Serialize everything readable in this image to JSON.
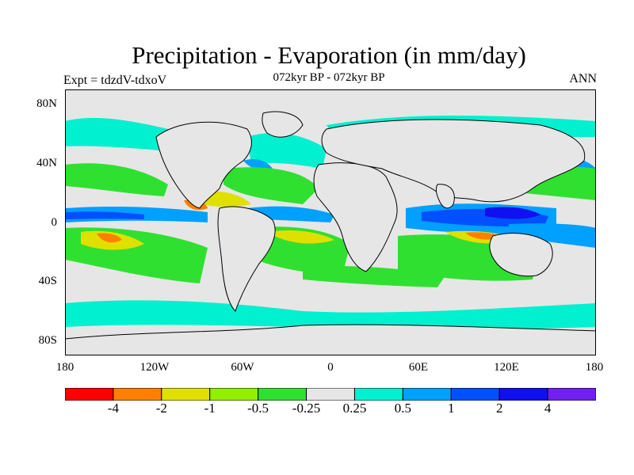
{
  "title": "Precipitation - Evaporation (in mm/day)",
  "subtitle": "072kyr BP - 072kyr BP",
  "left_label": "Expt = tdzdV-tdxoV",
  "right_label": "ANN",
  "lat_labels": [
    "80N",
    "40N",
    "0",
    "40S",
    "80S"
  ],
  "lon_labels": [
    "180",
    "120W",
    "60W",
    "0",
    "60E",
    "120E",
    "180"
  ],
  "colorbar": {
    "labels": [
      "-4",
      "-2",
      "-1",
      "-0.5",
      "-0.25",
      "0.25",
      "0.5",
      "1",
      "2",
      "4"
    ],
    "colors": [
      "#ff0000",
      "#ff8000",
      "#e0e000",
      "#90f000",
      "#30e030",
      "#e6e6e6",
      "#00f0d0",
      "#00a0ff",
      "#0050ff",
      "#1010f0",
      "#7020f0"
    ]
  },
  "colors": {
    "background": "#e6e6e6",
    "dry_strong": "#ff8000",
    "dry_yellow": "#e0e000",
    "dry_lightgreen": "#90f000",
    "dry_green": "#30e030",
    "wet_cyan": "#00f0d0",
    "wet_lightblue": "#00a0ff",
    "wet_blue": "#0050ff",
    "wet_darkblue": "#1010f0",
    "coast": "#000000"
  }
}
